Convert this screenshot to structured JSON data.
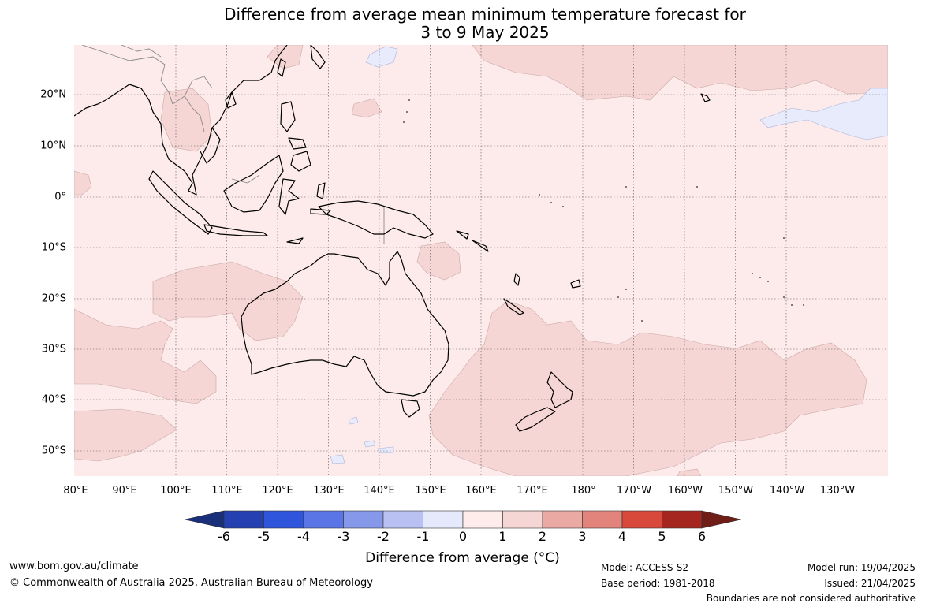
{
  "title_line1": "Difference from average mean minimum temperature forecast for",
  "title_line2": "3 to 9 May 2025",
  "lon_labels": [
    "80°E",
    "90°E",
    "100°E",
    "110°E",
    "120°E",
    "130°E",
    "140°E",
    "150°E",
    "160°E",
    "170°E",
    "180°",
    "170°W",
    "160°W",
    "150°W",
    "140°W",
    "130°W"
  ],
  "lat_labels": [
    "20°N",
    "10°N",
    "0°",
    "10°S",
    "20°S",
    "30°S",
    "40°S",
    "50°S"
  ],
  "colorbar": {
    "ticks": [
      "-6",
      "-5",
      "-4",
      "-3",
      "-2",
      "-1",
      "0",
      "1",
      "2",
      "3",
      "4",
      "5",
      "6"
    ],
    "colors": [
      "#1a2f7a",
      "#2540b0",
      "#2f55dd",
      "#5a76e6",
      "#8698ea",
      "#b9c1f2",
      "#e6e9fb",
      "#fdecea",
      "#f6d6d4",
      "#eaa9a2",
      "#e2847c",
      "#d8483b",
      "#a5261e",
      "#6e1e16"
    ],
    "label": "Difference from average (°C)"
  },
  "map_colors": {
    "ocean_base": "#fcebea",
    "warm_1_2": "#f5d6d4",
    "cool_0_m1": "#e8ebfb",
    "coast": "#000000",
    "grid": "#555555",
    "boundary": "#8a8a8a"
  },
  "footer": {
    "website": "www.bom.gov.au/climate",
    "copyright": "© Commonwealth of Australia 2025, Australian Bureau of Meteorology",
    "model": "Model: ACCESS-S2",
    "base_period": "Base period: 1981-2018",
    "model_run": "Model run: 19/04/2025",
    "issued": "Issued: 21/04/2025",
    "disclaimer": "Boundaries are not considered authoritative"
  }
}
